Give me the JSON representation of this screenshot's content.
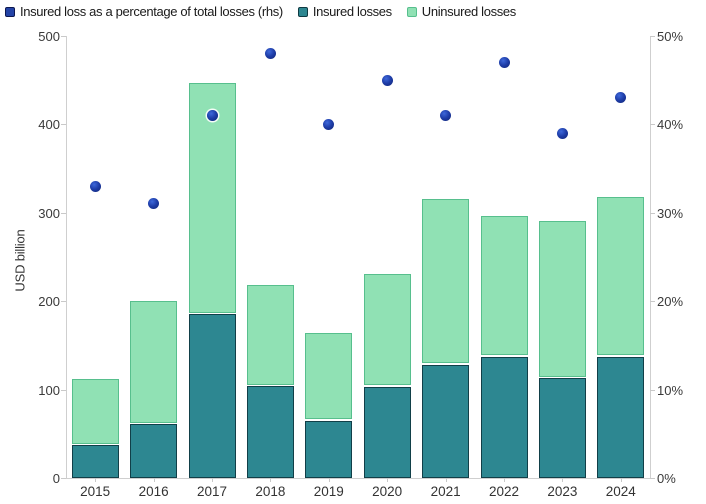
{
  "legend": [
    {
      "label": "Insured loss as a percentage of total losses (rhs)",
      "fill": "#2343a6",
      "border": "#0c1750"
    },
    {
      "label": "Insured losses",
      "fill": "#2d8791",
      "border": "#0f3a42"
    },
    {
      "label": "Uninsured losses",
      "fill": "#90e1b4",
      "border": "#57bf8d"
    }
  ],
  "chart_data": {
    "type": "bar",
    "subtype": "stacked-bar-with-scatter-overlay",
    "categories": [
      "2015",
      "2016",
      "2017",
      "2018",
      "2019",
      "2020",
      "2021",
      "2022",
      "2023",
      "2024"
    ],
    "series": [
      {
        "name": "Insured losses",
        "type": "bar",
        "axis": "left",
        "color": "#2d8791",
        "values": [
          37,
          61,
          185,
          104,
          65,
          103,
          128,
          137,
          113,
          137
        ]
      },
      {
        "name": "Uninsured losses",
        "type": "bar",
        "axis": "left",
        "color": "#90e1b4",
        "values": [
          75,
          139,
          262,
          114,
          99,
          128,
          188,
          159,
          178,
          181
        ]
      },
      {
        "name": "Insured loss as a percentage of total losses (rhs)",
        "type": "scatter",
        "axis": "right",
        "color": "#1e3da8",
        "values": [
          33,
          31,
          41,
          48,
          40,
          45,
          41,
          47,
          39,
          43
        ]
      }
    ],
    "left_axis": {
      "title": "USD billion",
      "min": 0,
      "max": 500,
      "tick_values": [
        0,
        100,
        200,
        300,
        400,
        500
      ],
      "tick_labels": [
        "0",
        "100",
        "200",
        "300",
        "400",
        "500"
      ]
    },
    "right_axis": {
      "min": 0,
      "max": 50,
      "tick_values": [
        0,
        10,
        20,
        30,
        40,
        50
      ],
      "tick_labels": [
        "0%",
        "10%",
        "20%",
        "30%",
        "40%",
        "50%"
      ]
    },
    "grid": false,
    "legend_position": "top-left",
    "background": "#ffffff"
  }
}
